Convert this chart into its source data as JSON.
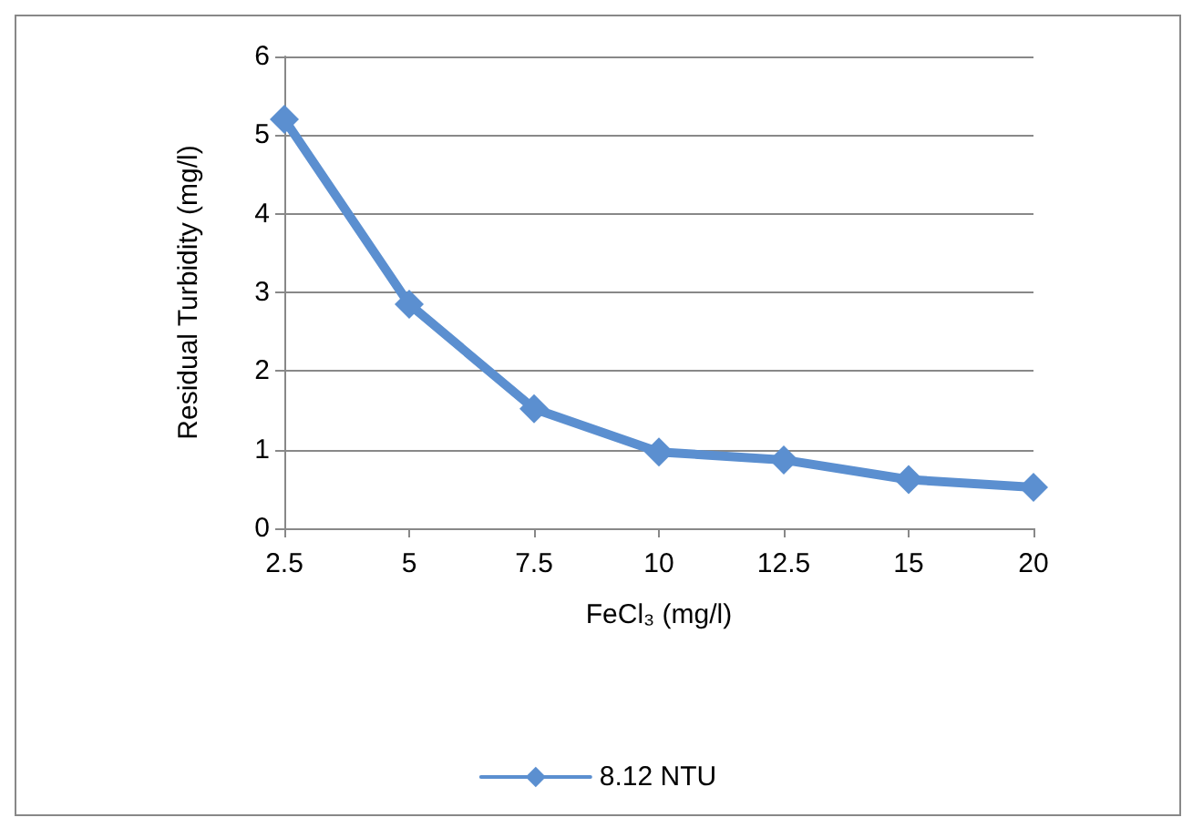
{
  "chart_data": {
    "type": "line",
    "xlabel": "FeCl₃ (mg/l)",
    "ylabel": "Residual Turbidity (mg/l)",
    "categories": [
      "2.5",
      "5",
      "7.5",
      "10",
      "12.5",
      "15",
      "20"
    ],
    "series": [
      {
        "name": "8.12 NTU",
        "color": "#5b8fd0",
        "values": [
          5.2,
          2.85,
          1.52,
          0.97,
          0.87,
          0.62,
          0.52
        ]
      }
    ],
    "ylim": [
      0,
      6
    ],
    "yticks": [
      0,
      1,
      2,
      3,
      4,
      5,
      6
    ],
    "grid": "y",
    "legend": "bottom",
    "marker": "diamond",
    "line_style": "solid"
  }
}
